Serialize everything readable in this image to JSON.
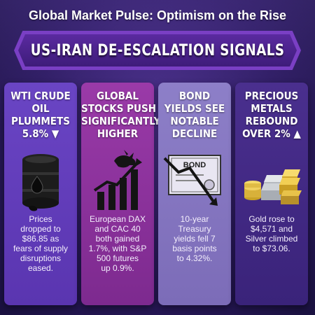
{
  "headline": "Global Market Pulse: Optimism on the Rise",
  "banner": "US-IRAN DE-ESCALATION SIGNALS",
  "panels": [
    {
      "title": [
        "WTI CRUDE",
        "OIL",
        "PLUMMETS",
        "5.8% ▼"
      ],
      "icon": "oil-barrel-icon",
      "body": [
        "Prices",
        "dropped to",
        "$86.85 as",
        "fears of supply",
        "disruptions",
        "eased."
      ]
    },
    {
      "title": [
        "GLOBAL",
        "STOCKS PUSH",
        "SIGNIFICANTLY",
        "HIGHER"
      ],
      "icon": "bull-rising-chart-icon",
      "body": [
        "European DAX",
        "and CAC 40",
        "both gained",
        "1.7%, with S&P",
        "500 futures",
        "up 0.9%."
      ]
    },
    {
      "title": [
        "BOND",
        "YIELDS SEE",
        "NOTABLE",
        "DECLINE"
      ],
      "icon": "bond-certificate-icon",
      "icon_label": "BOND",
      "body": [
        "10-year",
        "Treasury",
        "yields fell 7",
        "basis points",
        "to 4.32%."
      ]
    },
    {
      "title": [
        "PRECIOUS",
        "METALS",
        "REBOUND",
        "OVER 2% ▲"
      ],
      "icon": "gold-silver-bars-icon",
      "body": [
        "Gold rose to",
        "$4,571 and",
        "Silver climbed",
        "to $73.06."
      ]
    }
  ]
}
